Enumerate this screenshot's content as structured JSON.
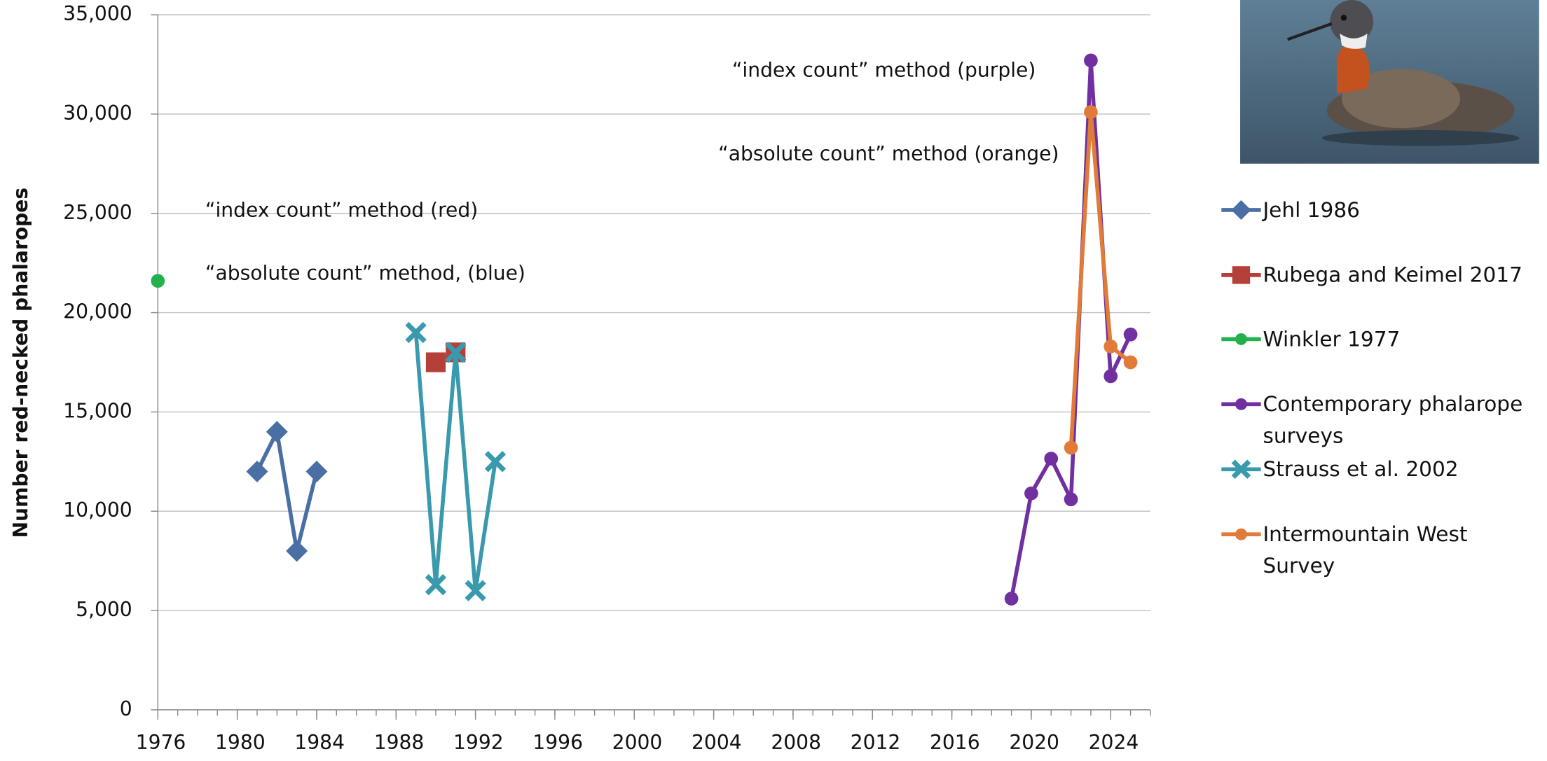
{
  "chart_data": {
    "type": "line",
    "y_label": "Number red-necked phalaropes",
    "xlim": [
      1976,
      2026
    ],
    "xticks": [
      1976,
      1980,
      1984,
      1988,
      1992,
      1996,
      2000,
      2004,
      2008,
      2012,
      2016,
      2020,
      2024
    ],
    "ylim": [
      0,
      35000
    ],
    "yticks": [
      0,
      {
        "value": 5000,
        "label": "5,000"
      },
      {
        "value": 10000,
        "label": "10,000"
      },
      {
        "value": 15000,
        "label": "15,000"
      },
      {
        "value": 20000,
        "label": "20,000"
      },
      {
        "value": 25000,
        "label": "25,000"
      },
      {
        "value": 30000,
        "label": "30,000"
      },
      {
        "value": 35000,
        "label": "35,000"
      }
    ],
    "grid": true,
    "annotations": [
      "“index count” method (purple)",
      "“absolute count” method (orange)",
      "“index count” method (red)",
      "“absolute count” method, (blue)"
    ],
    "series": [
      {
        "name": "Jehl 1986",
        "color": "#4a6fa5",
        "marker": "diamond",
        "x": [
          1981,
          1982,
          1983,
          1984
        ],
        "values": [
          12000,
          14000,
          8000,
          12000
        ]
      },
      {
        "name": "Rubega and Keimel 2017",
        "color": "#b5403a",
        "marker": "square",
        "x": [
          1990,
          1991
        ],
        "values": [
          17500,
          18000
        ]
      },
      {
        "name": "Winkler 1977",
        "color": "#22b14c",
        "marker": "circle",
        "x": [
          1976
        ],
        "values": [
          21600
        ]
      },
      {
        "name": "Contemporary phalarope surveys",
        "color": "#7030a0",
        "marker": "circle",
        "x": [
          2019,
          2020,
          2021,
          2022,
          2023,
          2024,
          2025
        ],
        "values": [
          5600,
          10900,
          12650,
          10600,
          32700,
          16800,
          18900
        ]
      },
      {
        "name": "Strauss et al. 2002",
        "color": "#3a9aad",
        "marker": "x",
        "x": [
          1989,
          1990,
          1991,
          1992,
          1993
        ],
        "values": [
          19000,
          6300,
          18000,
          6000,
          12500
        ]
      },
      {
        "name": "Intermountain West Survey",
        "color": "#e07b39",
        "marker": "circle",
        "x": [
          2022,
          2023,
          2024,
          2025
        ],
        "values": [
          13200,
          30100,
          18300,
          17500
        ]
      }
    ]
  }
}
